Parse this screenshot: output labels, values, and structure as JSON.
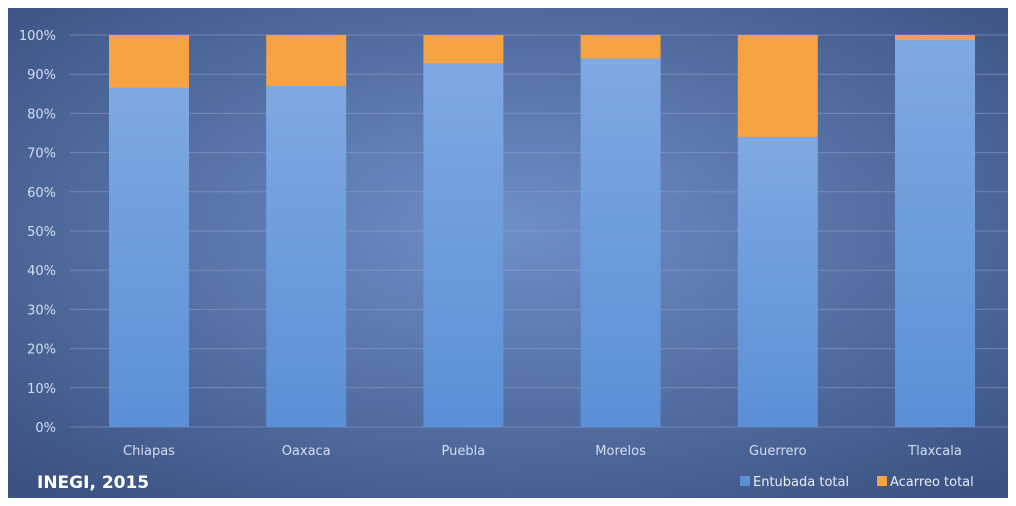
{
  "colors": {
    "background_center": "#6f8fc9",
    "background_edge": "#3c5382",
    "entubada": "#5b8fd6",
    "entubada_light": "#7fa9e2",
    "acarreo": "#f5a343",
    "gridline": "#8ea3cc"
  },
  "source": "INEGI, 2015",
  "chart_data": {
    "type": "bar",
    "stacked": true,
    "categories": [
      "Chiapas",
      "Oaxaca",
      "Puebla",
      "Morelos",
      "Guerrero",
      "Tlaxcala"
    ],
    "series": [
      {
        "name": "Entubada total",
        "values": [
          86.5,
          87,
          92.7,
          94,
          74,
          98.7
        ]
      },
      {
        "name": "Acarreo total",
        "values": [
          13.5,
          13,
          7.3,
          6,
          26,
          1.3
        ]
      }
    ],
    "yticks": [
      "0%",
      "10%",
      "20%",
      "30%",
      "40%",
      "50%",
      "60%",
      "70%",
      "80%",
      "90%",
      "100%"
    ],
    "ylim": [
      0,
      100
    ],
    "grid": true,
    "legend_position": "bottom-right"
  }
}
